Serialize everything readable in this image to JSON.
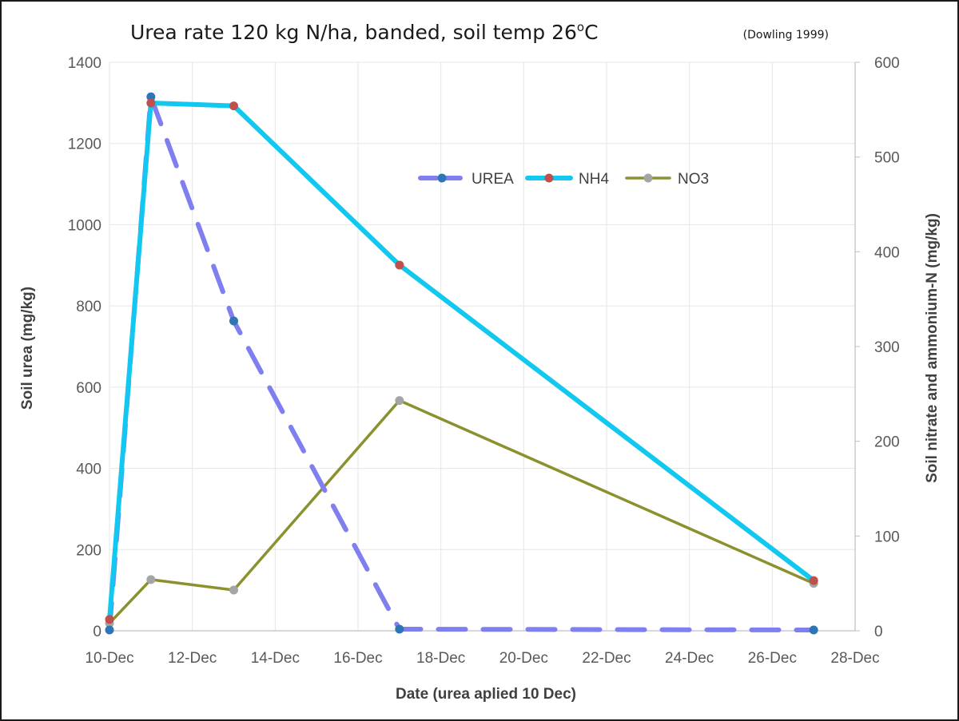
{
  "chart_data": {
    "type": "line",
    "title": "Urea rate 120 kg N/ha, banded, soil temp 26",
    "title_superscript": "o",
    "title_suffix": "C",
    "subtitle": "(Dowling 1999)",
    "xlabel": "Date (urea aplied 10 Dec)",
    "ylabel": "Soil urea (mg/kg)",
    "y2label": "Soil nitrate and ammonium-N (mg/kg)",
    "x_ticks": [
      "10-Dec",
      "12-Dec",
      "14-Dec",
      "16-Dec",
      "18-Dec",
      "20-Dec",
      "22-Dec",
      "24-Dec",
      "26-Dec",
      "28-Dec"
    ],
    "xlim": [
      "10-Dec",
      "28-Dec"
    ],
    "ylim": [
      0,
      1400
    ],
    "y_ticks": [
      "0",
      "200",
      "400",
      "600",
      "800",
      "1000",
      "1200",
      "1400"
    ],
    "y2lim": [
      0,
      600
    ],
    "y2_ticks": [
      "0",
      "100",
      "200",
      "300",
      "400",
      "500",
      "600"
    ],
    "grid": true,
    "legend_position": "top-right",
    "series": [
      {
        "name": "UREA",
        "axis": "left",
        "style": "dashed",
        "line_color": "#7f7ff0",
        "marker_color": "#2e75b6",
        "x": [
          "10-Dec",
          "11-Dec",
          "13-Dec",
          "17-Dec",
          "27-Dec"
        ],
        "y": [
          2,
          1315,
          763,
          4,
          2
        ]
      },
      {
        "name": "NH4",
        "axis": "right",
        "style": "solid",
        "line_color": "#12c8f0",
        "marker_color": "#c0504d",
        "x": [
          "10-Dec",
          "11-Dec",
          "13-Dec",
          "17-Dec",
          "27-Dec"
        ],
        "y": [
          12,
          557,
          554,
          386,
          53
        ]
      },
      {
        "name": "NO3",
        "axis": "right",
        "style": "solid",
        "line_color": "#8c9130",
        "marker_color": "#a5a5a5",
        "x": [
          "10-Dec",
          "11-Dec",
          "13-Dec",
          "17-Dec",
          "27-Dec"
        ],
        "y": [
          8,
          54,
          43,
          243,
          50
        ]
      }
    ]
  }
}
